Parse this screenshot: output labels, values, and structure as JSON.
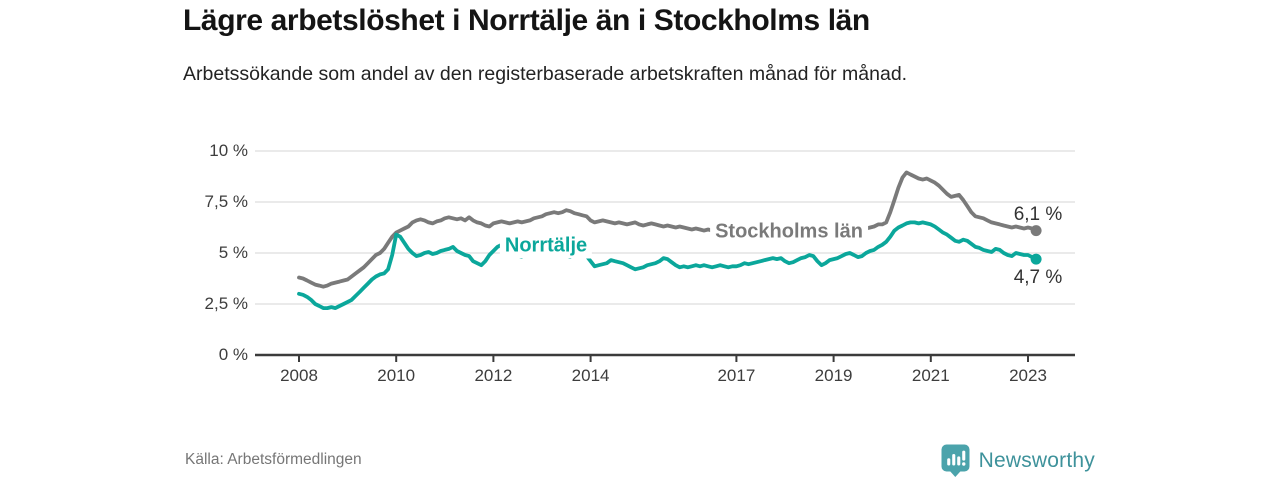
{
  "header": {
    "title": "Lägre arbetslöshet i Norrtälje än i Stockholms län",
    "subtitle": "Arbetssökande som andel av den registerbaserade arbetskraften månad för månad."
  },
  "footer": {
    "source": "Källa: Arbetsförmedlingen",
    "brand": "Newsworthy",
    "brand_icon": "newsworthy-speech-bubble-bar-chart-icon"
  },
  "colors": {
    "norrtalje_line": "#0ba79b",
    "stockholm_line": "#7a7a7a",
    "gridline": "#e3e3e3",
    "axis": "#3b3b3b",
    "tick_text": "#3d3d3d",
    "end_label_text": "#333333",
    "title_text": "#141414",
    "source_text": "#767676",
    "brand_teal": "#3e929b",
    "brand_icon_teal": "#4ba3ab"
  },
  "chart_data": {
    "type": "line",
    "title": "Lägre arbetslöshet i Norrtälje än i Stockholms län",
    "subtitle": "Arbetssökande som andel av den registerbaserade arbetskraften månad för månad.",
    "frequency": "monthly",
    "x_start_year": 2008.0,
    "x_end_year": 2023.1667,
    "ylim": [
      0,
      10
    ],
    "grid": "horizontal-only",
    "legend_position": "inline-labels-on-lines",
    "y_ticks": [
      {
        "label": "10 %",
        "value": 10
      },
      {
        "label": "7,5 %",
        "value": 7.5
      },
      {
        "label": "5 %",
        "value": 5
      },
      {
        "label": "2,5 %",
        "value": 2.5
      },
      {
        "label": "0 %",
        "value": 0
      }
    ],
    "x_ticks": [
      {
        "label": "2008",
        "year": 2008
      },
      {
        "label": "2010",
        "year": 2010
      },
      {
        "label": "2012",
        "year": 2012
      },
      {
        "label": "2014",
        "year": 2014
      },
      {
        "label": "2017",
        "year": 2017
      },
      {
        "label": "2019",
        "year": 2019
      },
      {
        "label": "2021",
        "year": 2021
      },
      {
        "label": "2023",
        "year": 2023
      }
    ],
    "series": [
      {
        "name": "Stockholms län",
        "color": "#7a7a7a",
        "end_label": "6,1 %",
        "end_value": 6.1,
        "values": [
          3.8,
          3.75,
          3.65,
          3.55,
          3.45,
          3.4,
          3.35,
          3.4,
          3.5,
          3.55,
          3.6,
          3.65,
          3.7,
          3.85,
          4.0,
          4.15,
          4.3,
          4.5,
          4.7,
          4.9,
          5.0,
          5.2,
          5.5,
          5.8,
          6.0,
          6.1,
          6.2,
          6.3,
          6.5,
          6.6,
          6.65,
          6.6,
          6.5,
          6.45,
          6.55,
          6.6,
          6.7,
          6.75,
          6.7,
          6.65,
          6.7,
          6.6,
          6.75,
          6.6,
          6.5,
          6.45,
          6.35,
          6.3,
          6.45,
          6.5,
          6.55,
          6.5,
          6.45,
          6.5,
          6.55,
          6.5,
          6.55,
          6.6,
          6.7,
          6.75,
          6.8,
          6.9,
          6.95,
          7.0,
          6.95,
          7.0,
          7.1,
          7.05,
          6.95,
          6.9,
          6.85,
          6.8,
          6.6,
          6.5,
          6.55,
          6.6,
          6.55,
          6.5,
          6.45,
          6.5,
          6.45,
          6.4,
          6.45,
          6.5,
          6.4,
          6.35,
          6.4,
          6.45,
          6.4,
          6.35,
          6.3,
          6.35,
          6.3,
          6.25,
          6.3,
          6.25,
          6.2,
          6.15,
          6.2,
          6.15,
          6.1,
          6.15,
          6.1,
          6.05,
          6.1,
          6.05,
          6.0,
          6.05,
          6.0,
          6.05,
          6.1,
          6.05,
          6.0,
          6.05,
          6.1,
          6.05,
          6.0,
          6.05,
          6.0,
          6.05,
          6.0,
          5.95,
          6.0,
          6.05,
          6.0,
          5.95,
          6.0,
          5.95,
          5.9,
          5.95,
          6.0,
          6.05,
          6.1,
          6.05,
          6.1,
          6.15,
          6.1,
          6.15,
          6.2,
          6.15,
          6.2,
          6.25,
          6.3,
          6.4,
          6.4,
          6.5,
          7.0,
          7.6,
          8.2,
          8.7,
          8.95,
          8.85,
          8.75,
          8.65,
          8.6,
          8.65,
          8.55,
          8.45,
          8.3,
          8.1,
          7.9,
          7.75,
          7.8,
          7.85,
          7.6,
          7.3,
          7.0,
          6.8,
          6.75,
          6.7,
          6.6,
          6.5,
          6.45,
          6.4,
          6.35,
          6.3,
          6.25,
          6.3,
          6.25,
          6.2,
          6.25,
          6.2,
          6.1
        ]
      },
      {
        "name": "Norrtälje",
        "color": "#0ba79b",
        "end_label": "4,7 %",
        "end_value": 4.7,
        "values": [
          3.0,
          2.95,
          2.85,
          2.7,
          2.5,
          2.4,
          2.3,
          2.3,
          2.35,
          2.3,
          2.4,
          2.5,
          2.6,
          2.7,
          2.9,
          3.1,
          3.3,
          3.5,
          3.7,
          3.85,
          3.95,
          4.0,
          4.2,
          4.9,
          5.9,
          5.8,
          5.5,
          5.2,
          5.0,
          4.85,
          4.9,
          5.0,
          5.05,
          4.95,
          5.0,
          5.1,
          5.15,
          5.2,
          5.3,
          5.1,
          5.0,
          4.9,
          4.85,
          4.6,
          4.5,
          4.4,
          4.6,
          4.9,
          5.1,
          5.3,
          5.4,
          5.3,
          5.2,
          5.0,
          4.85,
          4.8,
          4.9,
          5.1,
          5.2,
          5.3,
          5.4,
          5.45,
          5.4,
          5.3,
          5.15,
          5.0,
          4.85,
          4.8,
          4.9,
          4.85,
          4.9,
          4.85,
          4.6,
          4.35,
          4.4,
          4.45,
          4.5,
          4.65,
          4.6,
          4.55,
          4.5,
          4.4,
          4.3,
          4.2,
          4.25,
          4.3,
          4.4,
          4.45,
          4.5,
          4.6,
          4.75,
          4.7,
          4.55,
          4.4,
          4.3,
          4.35,
          4.3,
          4.35,
          4.4,
          4.35,
          4.4,
          4.35,
          4.3,
          4.35,
          4.4,
          4.35,
          4.3,
          4.35,
          4.35,
          4.4,
          4.5,
          4.45,
          4.5,
          4.55,
          4.6,
          4.65,
          4.7,
          4.75,
          4.7,
          4.75,
          4.6,
          4.5,
          4.55,
          4.65,
          4.75,
          4.8,
          4.9,
          4.85,
          4.6,
          4.4,
          4.5,
          4.65,
          4.7,
          4.75,
          4.85,
          4.95,
          5.0,
          4.9,
          4.8,
          4.85,
          5.0,
          5.1,
          5.15,
          5.3,
          5.4,
          5.55,
          5.8,
          6.1,
          6.25,
          6.35,
          6.45,
          6.5,
          6.5,
          6.45,
          6.5,
          6.45,
          6.4,
          6.3,
          6.15,
          6.0,
          5.9,
          5.75,
          5.6,
          5.55,
          5.65,
          5.6,
          5.45,
          5.3,
          5.25,
          5.15,
          5.1,
          5.05,
          5.2,
          5.15,
          5.0,
          4.9,
          4.85,
          5.0,
          4.95,
          4.9,
          4.9,
          4.8,
          4.7
        ]
      }
    ]
  }
}
